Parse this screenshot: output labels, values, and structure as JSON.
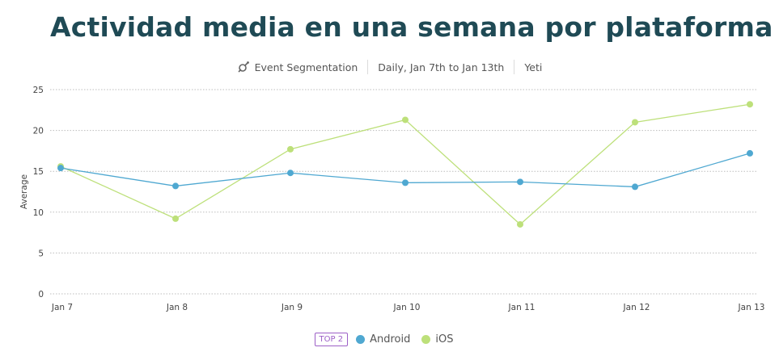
{
  "title": "Actividad media en una semana por plataforma",
  "subtitle": {
    "segment_label": "Event Segmentation",
    "date_range": "Daily, Jan 7th to Jan 13th",
    "project": "Yeti",
    "icon": "event-segmentation-icon"
  },
  "legend": {
    "badge": "TOP 2",
    "items": [
      {
        "label": "Android",
        "color": "#4fa8d1"
      },
      {
        "label": "iOS",
        "color": "#bde07a"
      }
    ]
  },
  "chart_data": {
    "type": "line",
    "categories": [
      "Jan 7",
      "Jan 8",
      "Jan 9",
      "Jan 10",
      "Jan 11",
      "Jan 12",
      "Jan 13"
    ],
    "series": [
      {
        "name": "Android",
        "color": "#4fa8d1",
        "values": [
          15.4,
          13.2,
          14.8,
          13.6,
          13.7,
          13.1,
          17.2
        ]
      },
      {
        "name": "iOS",
        "color": "#bde07a",
        "values": [
          15.6,
          9.2,
          17.7,
          21.3,
          8.5,
          21.0,
          23.2
        ]
      }
    ],
    "ylabel": "Average",
    "xlabel": "",
    "ylim": [
      0,
      25
    ],
    "yticks": [
      0,
      5,
      10,
      15,
      20,
      25
    ],
    "grid": true,
    "legend_position": "bottom"
  }
}
